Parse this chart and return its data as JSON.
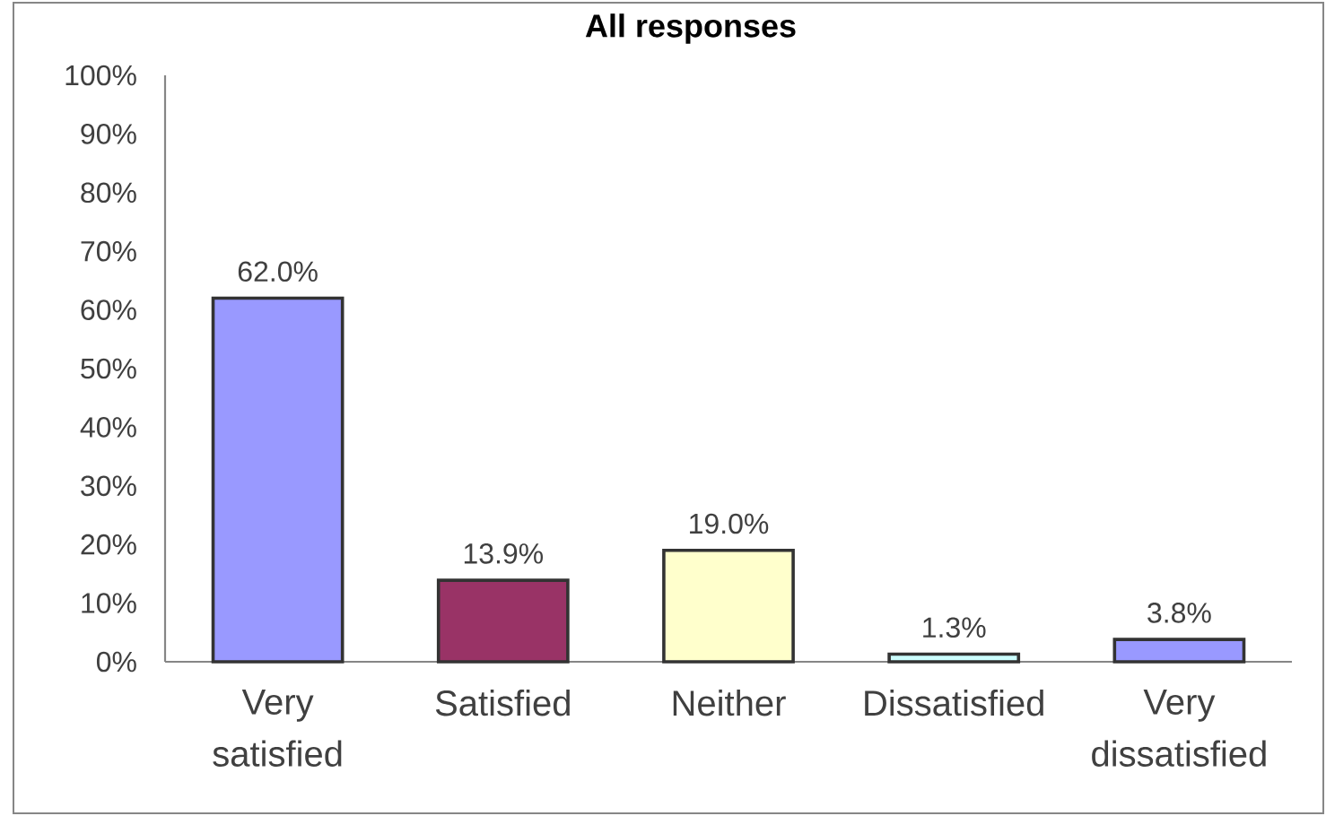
{
  "chart_data": {
    "type": "bar",
    "title": "All responses",
    "categories": [
      "Very satisfied",
      "Satisfied",
      "Neither",
      "Dissatisfied",
      "Very dissatisfied"
    ],
    "values": [
      62.0,
      13.9,
      19.0,
      1.3,
      3.8
    ],
    "colors": [
      "#9999ff",
      "#993366",
      "#ffffcc",
      "#ccffff",
      "#9999ff"
    ],
    "value_labels": [
      "62.0%",
      "13.9%",
      "19.0%",
      "1.3%",
      "3.8%"
    ],
    "ylim": [
      0,
      100
    ],
    "yticks": [
      {
        "value": 0,
        "label": "0%"
      },
      {
        "value": 10,
        "label": "10%"
      },
      {
        "value": 20,
        "label": "20%"
      },
      {
        "value": 30,
        "label": "30%"
      },
      {
        "value": 40,
        "label": "40%"
      },
      {
        "value": 50,
        "label": "50%"
      },
      {
        "value": 60,
        "label": "60%"
      },
      {
        "value": 70,
        "label": "70%"
      },
      {
        "value": 80,
        "label": "80%"
      },
      {
        "value": 90,
        "label": "90%"
      },
      {
        "value": 100,
        "label": "100%"
      }
    ]
  }
}
